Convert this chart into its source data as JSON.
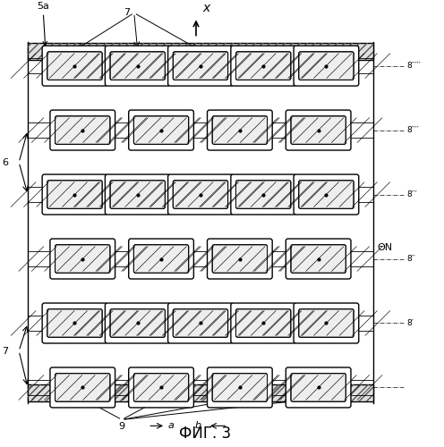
{
  "fig_width": 4.96,
  "fig_height": 5.0,
  "dpi": 100,
  "title": "ФИГ. 3",
  "title_fontsize": 12,
  "background_color": "#ffffff",
  "hatch_color": "#555555",
  "line_color": "#000000",
  "label_row0": "8′′′′′",
  "label_row1": "8′′′′",
  "label_row2": "8′′′",
  "label_row3": "8′′",
  "label_row4": "8′",
  "label_row5": ""
}
